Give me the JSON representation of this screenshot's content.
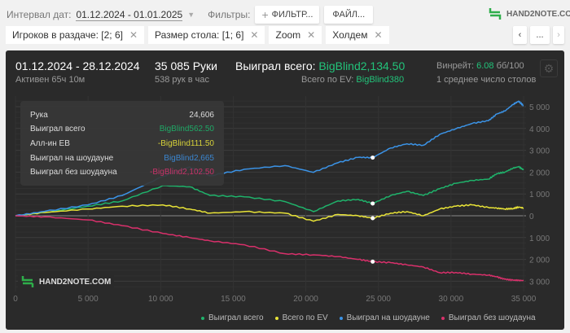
{
  "toolbar": {
    "date_label": "Интервал дат:",
    "date_value": "01.12.2024 - 01.01.2025",
    "filters_label": "Фильтры:",
    "filter_button": "ФИЛЬТР...",
    "file_button": "ФАЙЛ...",
    "logo_text": "HAND2NOTE.COM"
  },
  "chips": [
    {
      "label": "Игроков в раздаче: [2; 6]"
    },
    {
      "label": "Размер стола: [1; 6]"
    },
    {
      "label": "Zoom"
    },
    {
      "label": "Холдем"
    }
  ],
  "nav": {
    "more": "..."
  },
  "summary": {
    "period": "01.12.2024 - 28.12.2024",
    "active": "Активен 65ч 10м",
    "hands": "35 085 Руки",
    "hands_per_hour": "538 рук в час",
    "won_label": "Выиграл всего:",
    "won_value": "BigBlind2,134.50",
    "ev_label": "Всего по EV:",
    "ev_value": "BigBlind380",
    "winrate_label": "Винрейт:",
    "winrate_value": "6.08",
    "winrate_unit": "бб/100",
    "tables": "1 среднее число столов"
  },
  "tooltip": {
    "hand_label": "Рука",
    "hand_value": "24,606",
    "rows": [
      {
        "label": "Выиграл всего",
        "value": "BigBlind562.50",
        "color": "#1fa866"
      },
      {
        "label": "Алл-ин EB",
        "value": "-BigBlind111.50",
        "color": "#d7d23a"
      },
      {
        "label": "Выиграл на шоудауне",
        "value": "BigBlind2,665",
        "color": "#3b86d0"
      },
      {
        "label": "Выиграл без шоудауна",
        "value": "-BigBlind2,102.50",
        "color": "#c8336a"
      }
    ]
  },
  "watermark": "HAND2NOTE.COM",
  "chart_data": {
    "type": "line",
    "xlim": [
      0,
      35000
    ],
    "ylim": [
      -3300,
      5400
    ],
    "x_ticks": [
      {
        "v": 0,
        "label": "0"
      },
      {
        "v": 5000,
        "label": "5 000"
      },
      {
        "v": 10000,
        "label": "10 000"
      },
      {
        "v": 15000,
        "label": "15 000"
      },
      {
        "v": 20000,
        "label": "20 000"
      },
      {
        "v": 25000,
        "label": "25 000"
      },
      {
        "v": 30000,
        "label": "30 000"
      },
      {
        "v": 35000,
        "label": "35 000"
      }
    ],
    "y_ticks": [
      {
        "v": 5000,
        "label": "5 000"
      },
      {
        "v": 4000,
        "label": "4 000"
      },
      {
        "v": 3000,
        "label": "3 000"
      },
      {
        "v": 2000,
        "label": "2 000"
      },
      {
        "v": 1000,
        "label": "1 000"
      },
      {
        "v": 0,
        "label": "0"
      },
      {
        "v": -1000,
        "label": "1 000"
      },
      {
        "v": -2000,
        "label": "2 000"
      },
      {
        "v": -3000,
        "label": "3 000"
      }
    ],
    "grid": true,
    "legend": "bottom-right",
    "highlight_x": 24606,
    "x": [
      0,
      2000,
      5000,
      7350,
      10150,
      12000,
      13400,
      15760,
      18560,
      20530,
      22210,
      23610,
      24606,
      25850,
      26970,
      28100,
      29220,
      30340,
      31460,
      32590,
      33150,
      33710,
      34270,
      34660,
      35000
    ],
    "series": [
      {
        "name": "Выиграл всего",
        "color": "#1fb36b",
        "values": [
          0,
          150,
          440,
          680,
          1380,
          1330,
          930,
          870,
          650,
          190,
          680,
          750,
          562,
          930,
          1120,
          930,
          1240,
          1490,
          1620,
          1680,
          1930,
          2000,
          2180,
          2250,
          2100
        ]
      },
      {
        "name": "Всего по EV",
        "color": "#e8e337",
        "values": [
          0,
          150,
          310,
          440,
          500,
          310,
          120,
          190,
          120,
          -250,
          60,
          0,
          -111,
          120,
          190,
          0,
          310,
          440,
          500,
          375,
          350,
          310,
          330,
          400,
          350
        ]
      },
      {
        "name": "Выиграл на шоудауне",
        "color": "#3b93e6",
        "values": [
          0,
          200,
          500,
          930,
          1800,
          2240,
          1830,
          2130,
          2300,
          1990,
          2430,
          2680,
          2665,
          3110,
          3300,
          3230,
          3730,
          3990,
          4230,
          4360,
          4660,
          4800,
          5100,
          5250,
          5040
        ]
      },
      {
        "name": "Выиграл без шоудауна",
        "color": "#d9306b",
        "values": [
          0,
          -50,
          -190,
          -450,
          -810,
          -1000,
          -1150,
          -1330,
          -1740,
          -1790,
          -1870,
          -2000,
          -2102,
          -2150,
          -2250,
          -2350,
          -2610,
          -2600,
          -2680,
          -2720,
          -2800,
          -2910,
          -2950,
          -2960,
          -2970
        ]
      }
    ]
  }
}
